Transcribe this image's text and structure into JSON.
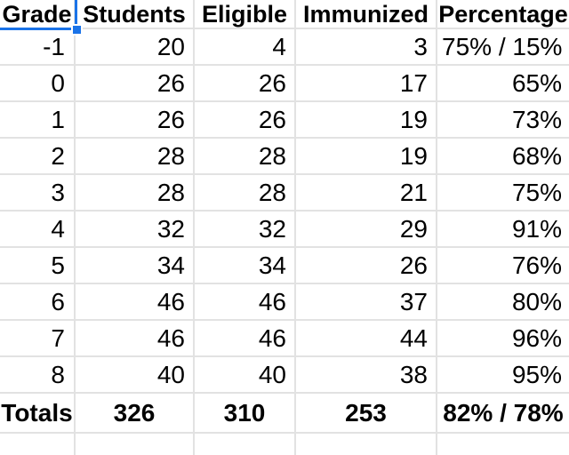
{
  "selection": {
    "selected_cell_text": "Grade",
    "accent_color": "#1a73e8"
  },
  "table": {
    "grid_color": "#e2e2e2",
    "columns": [
      {
        "key": "grade",
        "label": "Grade"
      },
      {
        "key": "students",
        "label": "Students"
      },
      {
        "key": "eligible",
        "label": "Eligible"
      },
      {
        "key": "immunized",
        "label": "Immunized"
      },
      {
        "key": "percentage",
        "label": "Percentage"
      }
    ],
    "rows": [
      {
        "grade": "-1",
        "students": "20",
        "eligible": "4",
        "immunized": "3",
        "percentage": "75% / 15%"
      },
      {
        "grade": "0",
        "students": "26",
        "eligible": "26",
        "immunized": "17",
        "percentage": "65%"
      },
      {
        "grade": "1",
        "students": "26",
        "eligible": "26",
        "immunized": "19",
        "percentage": "73%"
      },
      {
        "grade": "2",
        "students": "28",
        "eligible": "28",
        "immunized": "19",
        "percentage": "68%"
      },
      {
        "grade": "3",
        "students": "28",
        "eligible": "28",
        "immunized": "21",
        "percentage": "75%"
      },
      {
        "grade": "4",
        "students": "32",
        "eligible": "32",
        "immunized": "29",
        "percentage": "91%"
      },
      {
        "grade": "5",
        "students": "34",
        "eligible": "34",
        "immunized": "26",
        "percentage": "76%"
      },
      {
        "grade": "6",
        "students": "46",
        "eligible": "46",
        "immunized": "37",
        "percentage": "80%"
      },
      {
        "grade": "7",
        "students": "46",
        "eligible": "46",
        "immunized": "44",
        "percentage": "96%"
      },
      {
        "grade": "8",
        "students": "40",
        "eligible": "40",
        "immunized": "38",
        "percentage": "95%"
      },
      {
        "grade": "Totals",
        "students": "326",
        "eligible": "310",
        "immunized": "253",
        "percentage": "82% / 78%",
        "is_totals": true
      }
    ]
  }
}
